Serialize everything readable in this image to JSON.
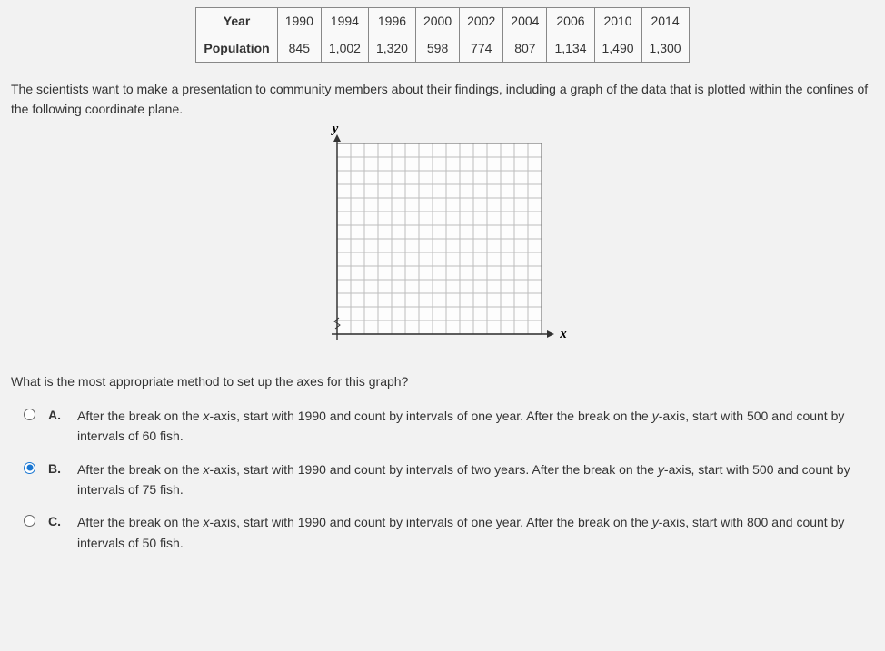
{
  "table": {
    "row1_header": "Year",
    "row1": [
      "1990",
      "1994",
      "1996",
      "2000",
      "2002",
      "2004",
      "2006",
      "2010",
      "2014"
    ],
    "row2_header": "Population",
    "row2": [
      "845",
      "1,002",
      "1,320",
      "598",
      "774",
      "807",
      "1,134",
      "1,490",
      "1,300"
    ]
  },
  "paragraph": "The scientists want to make a presentation to community members about their findings, including a graph of the data that is plotted within the confines of the following coordinate plane.",
  "axes": {
    "y_label": "y",
    "x_label": "x"
  },
  "grid": {
    "cols": 15,
    "rows": 14,
    "cell": 15,
    "outer_stroke": "#777777",
    "inner_stroke": "#bdbdbd",
    "background": "#fdfdfd"
  },
  "question_text": "What is the most appropriate method to set up the axes for this graph?",
  "options": {
    "a": {
      "letter": "A.",
      "selected": false,
      "text": "After the break on the x-axis, start with 1990 and count by intervals of one year. After the break on the y-axis, start with 500 and count by intervals of 60 fish."
    },
    "b": {
      "letter": "B.",
      "selected": true,
      "text": "After the break on the x-axis, start with 1990 and count by intervals of two years. After the break on the y-axis, start with 500 and count by intervals of 75 fish."
    },
    "c": {
      "letter": "C.",
      "selected": false,
      "text": "After the break on the x-axis, start with 1990 and count by intervals of one year. After the break on the y-axis, start with 800 and count by intervals of 50 fish."
    }
  }
}
